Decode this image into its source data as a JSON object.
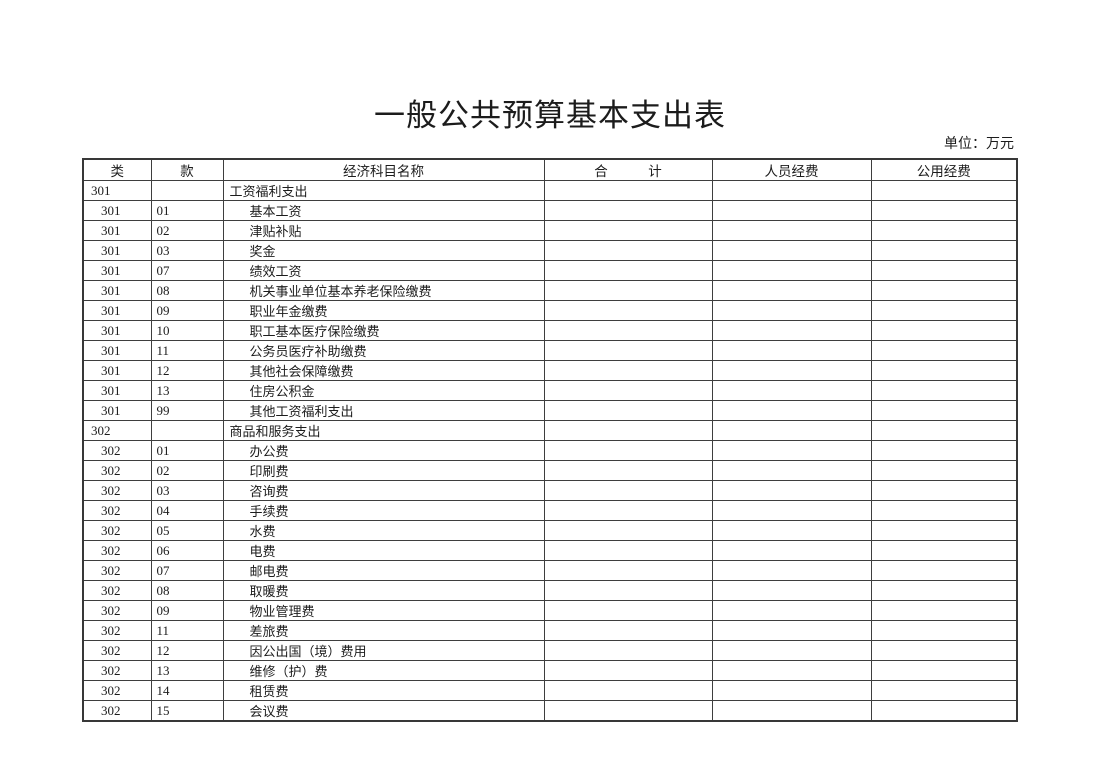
{
  "document": {
    "title": "一般公共预算基本支出表",
    "unit_note": "单位：万元"
  },
  "colors": {
    "background": "#ffffff",
    "text": "#1c1c1c",
    "border": "#3e3e3e"
  },
  "table": {
    "headers": {
      "category": "类",
      "item": "款",
      "subject": "经济科目名称",
      "total": "合　　　计",
      "personnel": "人员经费",
      "public": "公用经费"
    },
    "rows": [
      {
        "category": "301",
        "item": "",
        "subject": "工资福利支出",
        "total": "",
        "personnel": "",
        "public": "",
        "section": true
      },
      {
        "category": "301",
        "item": "01",
        "subject": "基本工资",
        "total": "",
        "personnel": "",
        "public": "",
        "section": false
      },
      {
        "category": "301",
        "item": "02",
        "subject": "津贴补贴",
        "total": "",
        "personnel": "",
        "public": "",
        "section": false
      },
      {
        "category": "301",
        "item": "03",
        "subject": "奖金",
        "total": "",
        "personnel": "",
        "public": "",
        "section": false
      },
      {
        "category": "301",
        "item": "07",
        "subject": "绩效工资",
        "total": "",
        "personnel": "",
        "public": "",
        "section": false
      },
      {
        "category": "301",
        "item": "08",
        "subject": "机关事业单位基本养老保险缴费",
        "total": "",
        "personnel": "",
        "public": "",
        "section": false
      },
      {
        "category": "301",
        "item": "09",
        "subject": "职业年金缴费",
        "total": "",
        "personnel": "",
        "public": "",
        "section": false
      },
      {
        "category": "301",
        "item": "10",
        "subject": "职工基本医疗保险缴费",
        "total": "",
        "personnel": "",
        "public": "",
        "section": false
      },
      {
        "category": "301",
        "item": "11",
        "subject": "公务员医疗补助缴费",
        "total": "",
        "personnel": "",
        "public": "",
        "section": false
      },
      {
        "category": "301",
        "item": "12",
        "subject": "其他社会保障缴费",
        "total": "",
        "personnel": "",
        "public": "",
        "section": false
      },
      {
        "category": "301",
        "item": "13",
        "subject": "住房公积金",
        "total": "",
        "personnel": "",
        "public": "",
        "section": false
      },
      {
        "category": "301",
        "item": "99",
        "subject": "其他工资福利支出",
        "total": "",
        "personnel": "",
        "public": "",
        "section": false
      },
      {
        "category": "302",
        "item": "",
        "subject": "商品和服务支出",
        "total": "",
        "personnel": "",
        "public": "",
        "section": true
      },
      {
        "category": "302",
        "item": "01",
        "subject": "办公费",
        "total": "",
        "personnel": "",
        "public": "",
        "section": false
      },
      {
        "category": "302",
        "item": "02",
        "subject": "印刷费",
        "total": "",
        "personnel": "",
        "public": "",
        "section": false
      },
      {
        "category": "302",
        "item": "03",
        "subject": "咨询费",
        "total": "",
        "personnel": "",
        "public": "",
        "section": false
      },
      {
        "category": "302",
        "item": "04",
        "subject": "手续费",
        "total": "",
        "personnel": "",
        "public": "",
        "section": false
      },
      {
        "category": "302",
        "item": "05",
        "subject": "水费",
        "total": "",
        "personnel": "",
        "public": "",
        "section": false
      },
      {
        "category": "302",
        "item": "06",
        "subject": "电费",
        "total": "",
        "personnel": "",
        "public": "",
        "section": false
      },
      {
        "category": "302",
        "item": "07",
        "subject": "邮电费",
        "total": "",
        "personnel": "",
        "public": "",
        "section": false
      },
      {
        "category": "302",
        "item": "08",
        "subject": "取暖费",
        "total": "",
        "personnel": "",
        "public": "",
        "section": false
      },
      {
        "category": "302",
        "item": "09",
        "subject": "物业管理费",
        "total": "",
        "personnel": "",
        "public": "",
        "section": false
      },
      {
        "category": "302",
        "item": "11",
        "subject": "差旅费",
        "total": "",
        "personnel": "",
        "public": "",
        "section": false
      },
      {
        "category": "302",
        "item": "12",
        "subject": "因公出国（境）费用",
        "total": "",
        "personnel": "",
        "public": "",
        "section": false
      },
      {
        "category": "302",
        "item": "13",
        "subject": "维修（护）费",
        "total": "",
        "personnel": "",
        "public": "",
        "section": false
      },
      {
        "category": "302",
        "item": "14",
        "subject": "租赁费",
        "total": "",
        "personnel": "",
        "public": "",
        "section": false
      },
      {
        "category": "302",
        "item": "15",
        "subject": "会议费",
        "total": "",
        "personnel": "",
        "public": "",
        "section": false
      }
    ]
  }
}
